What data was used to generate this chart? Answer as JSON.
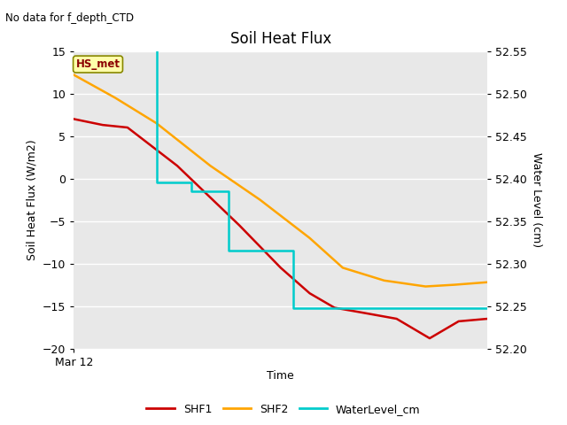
{
  "title": "Soil Heat Flux",
  "subtitle": "No data for f_depth_CTD",
  "xlabel": "Time",
  "ylabel_left": "Soil Heat Flux (W/m2)",
  "ylabel_right": "Water Level (cm)",
  "annotation_box": "HS_met",
  "background_color": "#ffffff",
  "plot_bg_color": "#e8e8e8",
  "ylim_left": [
    -20,
    15
  ],
  "ylim_right": [
    52.2,
    52.55
  ],
  "yticks_left": [
    -20,
    -15,
    -10,
    -5,
    0,
    5,
    10,
    15
  ],
  "yticks_right": [
    52.2,
    52.25,
    52.3,
    52.35,
    52.4,
    52.45,
    52.5,
    52.55
  ],
  "xmin": 0,
  "xmax": 1,
  "shf1_x": [
    0.0,
    0.07,
    0.13,
    0.25,
    0.4,
    0.5,
    0.57,
    0.63,
    0.7,
    0.78,
    0.86,
    0.93,
    1.0
  ],
  "shf1_y": [
    7.0,
    6.3,
    6.0,
    1.5,
    -5.5,
    -10.5,
    -13.5,
    -15.2,
    -15.8,
    -16.5,
    -18.8,
    -16.8,
    -16.5
  ],
  "shf2_x": [
    0.0,
    0.1,
    0.2,
    0.33,
    0.45,
    0.57,
    0.65,
    0.75,
    0.85,
    0.92,
    1.0
  ],
  "shf2_y": [
    12.2,
    9.5,
    6.5,
    1.5,
    -2.5,
    -7.0,
    -10.5,
    -12.0,
    -12.7,
    -12.5,
    -12.2
  ],
  "wl_x": [
    0.0,
    0.2,
    0.2,
    0.285,
    0.285,
    0.375,
    0.375,
    0.53,
    0.53,
    0.6,
    0.6,
    1.0
  ],
  "wl_y": [
    52.555,
    52.555,
    52.395,
    52.395,
    52.385,
    52.385,
    52.315,
    52.315,
    52.247,
    52.247,
    52.247,
    52.247
  ],
  "shf1_color": "#cc0000",
  "shf2_color": "#ffa500",
  "wl_color": "#00cccc",
  "legend_labels": [
    "SHF1",
    "SHF2",
    "WaterLevel_cm"
  ],
  "xtick_label": "Mar 12",
  "grid_color": "#ffffff",
  "grid_linewidth": 1.0,
  "line_linewidth": 1.8,
  "tick_linewidth": 0.8,
  "right_tick_style": "dotted"
}
